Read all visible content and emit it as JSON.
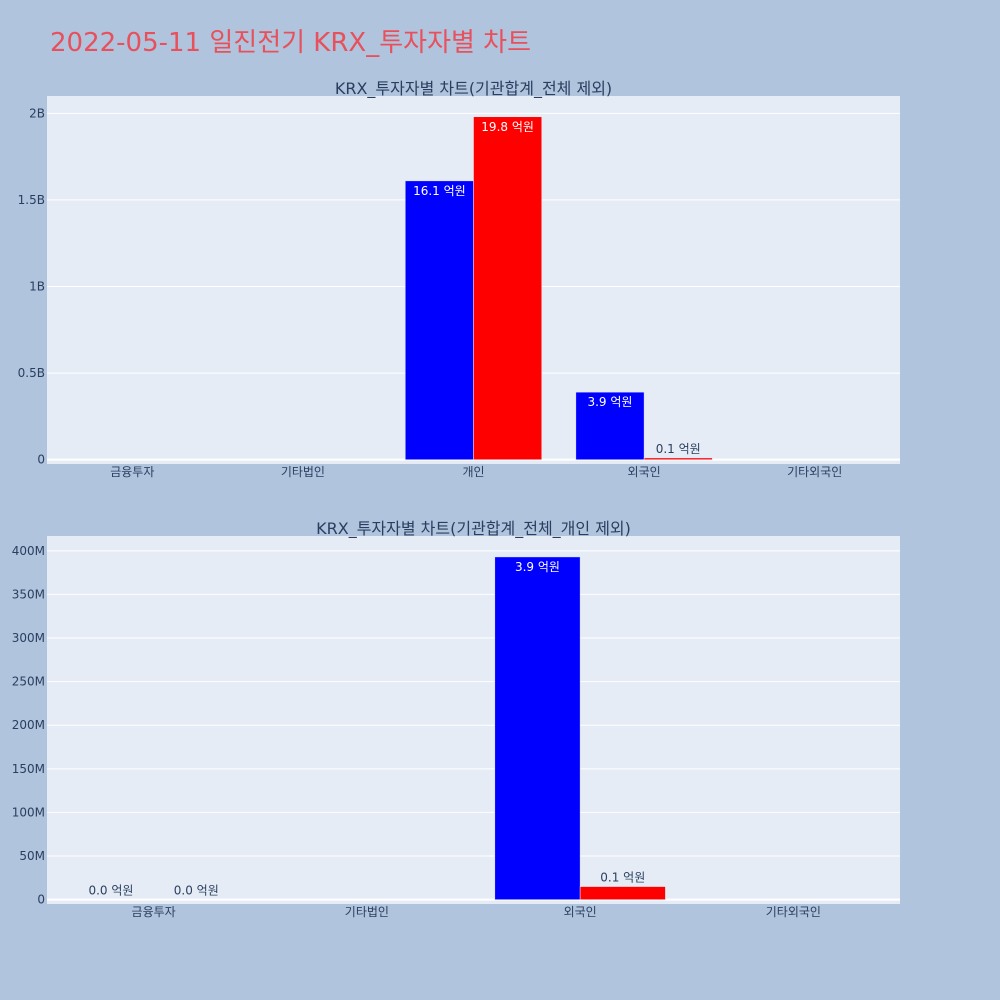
{
  "page": {
    "title": "2022-05-11 일진전기 KRX_투자자별 차트",
    "background": "#b0c4de",
    "title_color": "#e8505b"
  },
  "chart_data": [
    {
      "type": "bar",
      "title": "KRX_투자자별 차트(기관합계_전체 제외)",
      "categories": [
        "금융투자",
        "기타법인",
        "개인",
        "외국인",
        "기타외국인"
      ],
      "series": [
        {
          "color": "#0000ff",
          "values": [
            0,
            0,
            1610000000,
            390000000,
            0
          ],
          "labels": [
            "",
            "",
            "16.1 억원",
            "3.9 억원",
            ""
          ]
        },
        {
          "color": "#ff0000",
          "values": [
            0,
            0,
            1980000000,
            10000000,
            0
          ],
          "labels": [
            "",
            "",
            "19.8 억원",
            "0.1 억원",
            ""
          ]
        }
      ],
      "ylim": [
        -25000000,
        2100000000
      ],
      "yticks": [
        0,
        500000000,
        1000000000,
        1500000000,
        2000000000
      ],
      "ytick_labels": [
        "0",
        "0.5B",
        "1B",
        "1.5B",
        "2B"
      ],
      "grid": true,
      "plot_bgcolor": "#e5ecf6"
    },
    {
      "type": "bar",
      "title": "KRX_투자자별 차트(기관합계_전체_개인 제외)",
      "categories": [
        "금융투자",
        "기타법인",
        "외국인",
        "기타외국인"
      ],
      "series": [
        {
          "color": "#0000ff",
          "values": [
            0,
            0,
            393000000,
            0
          ],
          "labels": [
            "0.0 억원",
            "",
            "3.9 억원",
            ""
          ]
        },
        {
          "color": "#ff0000",
          "values": [
            0,
            0,
            15000000,
            0
          ],
          "labels": [
            "0.0 억원",
            "",
            "0.1 억원",
            ""
          ]
        }
      ],
      "ylim": [
        -5000000,
        417000000
      ],
      "yticks": [
        0,
        50000000,
        100000000,
        150000000,
        200000000,
        250000000,
        300000000,
        350000000,
        400000000
      ],
      "ytick_labels": [
        "0",
        "50M",
        "100M",
        "150M",
        "200M",
        "250M",
        "300M",
        "350M",
        "400M"
      ],
      "grid": true,
      "plot_bgcolor": "#e5ecf6"
    }
  ]
}
